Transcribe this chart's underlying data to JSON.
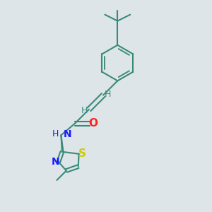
{
  "bg_color": "#dde5e8",
  "bond_color": "#3a8a7a",
  "bond_width": 1.5,
  "N_color": "#1a1aff",
  "S_color": "#cccc00",
  "O_color": "#ff2222",
  "H_color": "#3a8a7a",
  "font_size_atom": 10,
  "font_size_H": 9,
  "xlim": [
    0,
    10
  ],
  "ylim": [
    0,
    10
  ]
}
